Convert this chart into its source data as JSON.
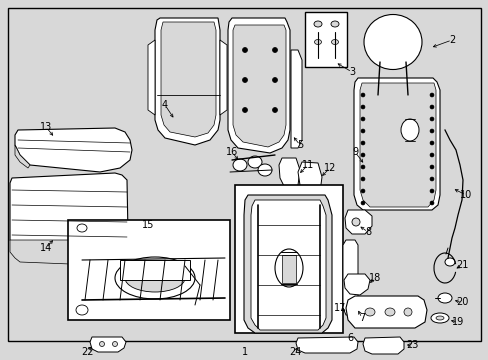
{
  "background_color": "#d8d8d8",
  "border_color": "#000000",
  "line_color": "#000000",
  "text_color": "#000000",
  "label_fontsize": 7.0,
  "fig_width": 4.89,
  "fig_height": 3.6,
  "dpi": 100
}
